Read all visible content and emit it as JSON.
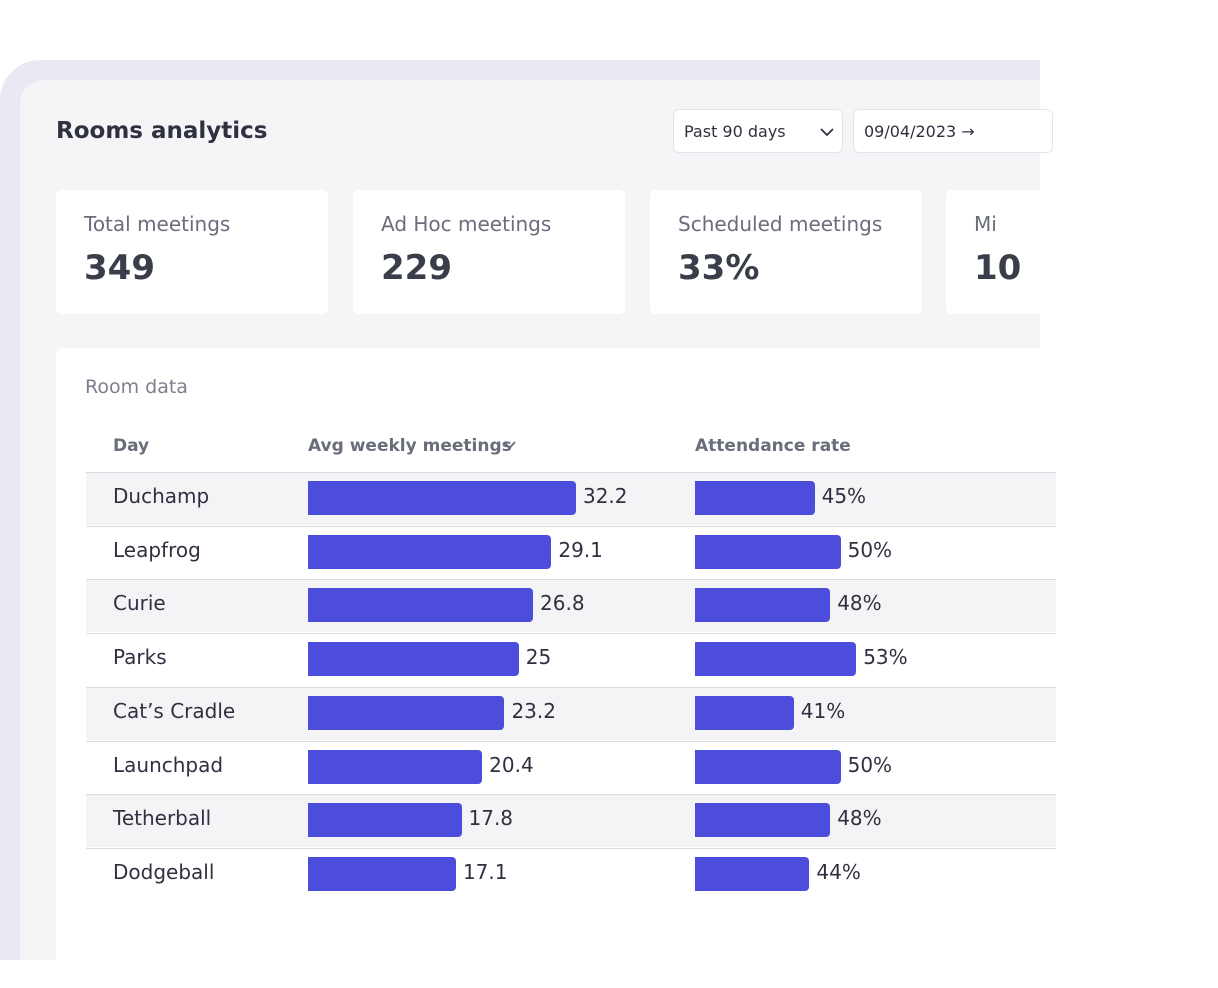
{
  "header": {
    "title": "Rooms analytics",
    "range": "Past 90 days",
    "date": "09/04/2023 →"
  },
  "cards": [
    {
      "label": "Total meetings",
      "value": "349"
    },
    {
      "label": "Ad Hoc meetings",
      "value": "229"
    },
    {
      "label": "Scheduled meetings",
      "value": "33%"
    },
    {
      "label": "Mi",
      "value": "10"
    }
  ],
  "table": {
    "title": "Room data",
    "columns": [
      "Day",
      "Avg weekly meetings",
      "Attendance rate"
    ],
    "rows": [
      {
        "room": "Duchamp",
        "meetings": 32.2,
        "attendance": 45,
        "attendance_label": "45%"
      },
      {
        "room": "Leapfrog",
        "meetings": 29.1,
        "attendance": 50,
        "attendance_label": "50%"
      },
      {
        "room": "Curie",
        "meetings": 26.8,
        "attendance": 48,
        "attendance_label": "48%"
      },
      {
        "room": "Parks",
        "meetings": 25,
        "attendance": 53,
        "attendance_label": "53%"
      },
      {
        "room": "Cat’s Cradle",
        "meetings": 23.2,
        "attendance": 41,
        "attendance_label": "41%"
      },
      {
        "room": "Launchpad",
        "meetings": 20.4,
        "attendance": 50,
        "attendance_label": "50%"
      },
      {
        "room": "Tetherball",
        "meetings": 17.8,
        "attendance": 48,
        "attendance_label": "48%"
      },
      {
        "room": "Dodgeball",
        "meetings": 17.1,
        "attendance": 44,
        "attendance_label": "44%"
      }
    ]
  }
}
